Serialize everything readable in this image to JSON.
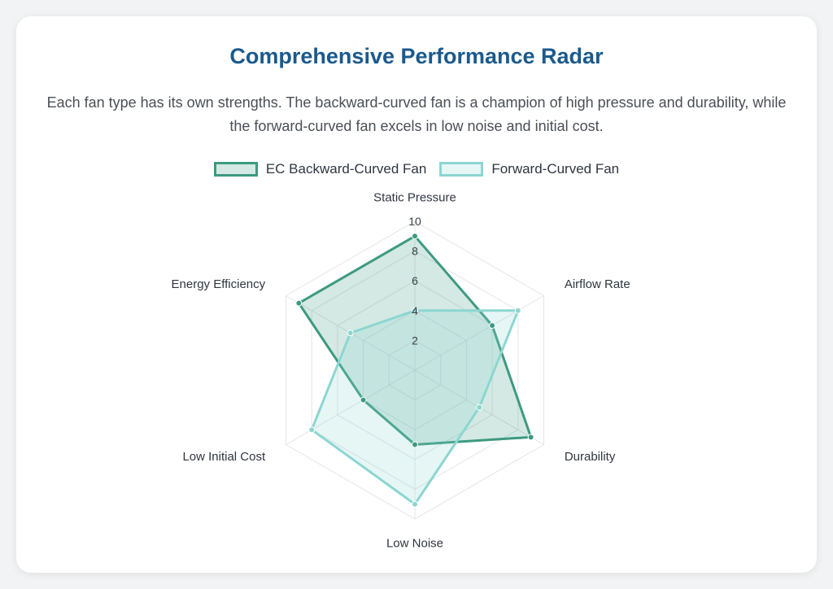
{
  "card": {
    "title": "Comprehensive Performance Radar",
    "subtitle": "Each fan type has its own strengths. The backward-curved fan is a champion of high pressure and durability, while the forward-curved fan excels in low noise and initial cost."
  },
  "chart_data": {
    "type": "radar",
    "axes": [
      "Static Pressure",
      "Airflow Rate",
      "Durability",
      "Low Noise",
      "Low Initial Cost",
      "Energy Efficiency"
    ],
    "range": [
      0,
      10
    ],
    "ticks": [
      2,
      4,
      6,
      8,
      10
    ],
    "legend_position": "top",
    "series": [
      {
        "name": "EC Backward-Curved Fan",
        "values": [
          9,
          6,
          9,
          5,
          4,
          9
        ],
        "stroke": "#3d9a80",
        "fill": "rgba(61,154,128,0.22)"
      },
      {
        "name": "Forward-Curved Fan",
        "values": [
          4,
          8,
          5,
          9,
          8,
          5
        ],
        "stroke": "#8cd6d1",
        "fill": "rgba(140,214,209,0.22)"
      }
    ]
  }
}
